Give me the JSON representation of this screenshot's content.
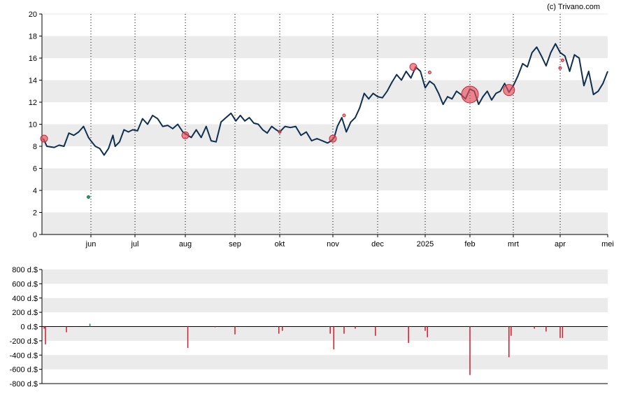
{
  "copyright": "(c) Trivano.com",
  "chart_data": [
    {
      "type": "line",
      "x_tick_labels": [
        "jun",
        "jul",
        "aug",
        "sep",
        "okt",
        "nov",
        "dec",
        "2025",
        "feb",
        "mrt",
        "apr",
        "mei"
      ],
      "x_ticks_month_index": [
        1,
        2,
        3,
        4,
        5,
        6,
        7,
        8,
        9,
        10,
        11,
        12
      ],
      "y_tick_labels": [
        "0",
        "2",
        "4",
        "6",
        "8",
        "10",
        "12",
        "14",
        "16",
        "18",
        "20"
      ],
      "ylim": [
        0,
        20
      ],
      "grid": "horizontal bands, dotted monthly verticals",
      "colors": {
        "price_line": "#0f2f4f",
        "sell_marker": "#e8505b",
        "buy_marker": "#2a9d6a",
        "band": "#ebebeb"
      },
      "series": [
        {
          "values_by_month_index": [
            [
              0.0,
              8.7
            ],
            [
              0.1,
              8.0
            ],
            [
              0.25,
              7.9
            ],
            [
              0.35,
              8.1
            ],
            [
              0.45,
              8.0
            ],
            [
              0.55,
              9.2
            ],
            [
              0.65,
              9.0
            ],
            [
              0.75,
              9.3
            ],
            [
              0.85,
              9.8
            ],
            [
              0.95,
              8.8
            ],
            [
              1.0,
              8.5
            ],
            [
              1.1,
              8.0
            ],
            [
              1.2,
              7.8
            ],
            [
              1.3,
              7.2
            ],
            [
              1.4,
              7.8
            ],
            [
              1.5,
              9.0
            ],
            [
              1.55,
              8.0
            ],
            [
              1.65,
              8.4
            ],
            [
              1.75,
              9.5
            ],
            [
              1.85,
              9.3
            ],
            [
              1.95,
              9.5
            ],
            [
              2.05,
              9.4
            ],
            [
              2.15,
              10.5
            ],
            [
              2.25,
              10.0
            ],
            [
              2.35,
              10.8
            ],
            [
              2.45,
              10.5
            ],
            [
              2.55,
              9.8
            ],
            [
              2.65,
              9.9
            ],
            [
              2.75,
              9.6
            ],
            [
              2.85,
              10.0
            ],
            [
              2.95,
              9.3
            ],
            [
              3.05,
              9.0
            ],
            [
              3.12,
              8.8
            ],
            [
              3.22,
              9.5
            ],
            [
              3.32,
              8.8
            ],
            [
              3.42,
              9.8
            ],
            [
              3.52,
              8.5
            ],
            [
              3.62,
              8.4
            ],
            [
              3.72,
              10.2
            ],
            [
              3.82,
              10.6
            ],
            [
              3.92,
              11.0
            ],
            [
              4.02,
              10.3
            ],
            [
              4.12,
              10.8
            ],
            [
              4.22,
              10.3
            ],
            [
              4.32,
              10.6
            ],
            [
              4.42,
              10.1
            ],
            [
              4.52,
              10.0
            ],
            [
              4.62,
              9.5
            ],
            [
              4.72,
              9.2
            ],
            [
              4.82,
              9.8
            ],
            [
              4.92,
              9.5
            ],
            [
              5.0,
              9.3
            ],
            [
              5.1,
              9.8
            ],
            [
              5.2,
              9.7
            ],
            [
              5.3,
              9.8
            ],
            [
              5.4,
              9.0
            ],
            [
              5.5,
              9.3
            ],
            [
              5.6,
              8.5
            ],
            [
              5.7,
              8.7
            ],
            [
              5.8,
              8.5
            ],
            [
              5.9,
              8.3
            ],
            [
              5.97,
              8.5
            ],
            [
              6.03,
              8.8
            ],
            [
              6.1,
              9.8
            ],
            [
              6.2,
              10.6
            ],
            [
              6.3,
              9.3
            ],
            [
              6.4,
              10.2
            ],
            [
              6.5,
              10.6
            ],
            [
              6.6,
              11.5
            ],
            [
              6.7,
              12.8
            ],
            [
              6.8,
              12.3
            ],
            [
              6.9,
              12.8
            ],
            [
              7.0,
              12.5
            ],
            [
              7.1,
              12.4
            ],
            [
              7.2,
              13.0
            ],
            [
              7.3,
              13.8
            ],
            [
              7.4,
              14.5
            ],
            [
              7.5,
              14.0
            ],
            [
              7.6,
              14.8
            ],
            [
              7.7,
              14.2
            ],
            [
              7.8,
              15.2
            ],
            [
              7.9,
              14.8
            ],
            [
              8.0,
              13.3
            ],
            [
              8.1,
              13.9
            ],
            [
              8.2,
              13.6
            ],
            [
              8.3,
              12.8
            ],
            [
              8.4,
              11.8
            ],
            [
              8.5,
              12.5
            ],
            [
              8.6,
              12.3
            ],
            [
              8.7,
              13.0
            ],
            [
              8.8,
              12.7
            ],
            [
              8.9,
              12.3
            ],
            [
              9.0,
              13.2
            ],
            [
              9.1,
              13.0
            ],
            [
              9.2,
              11.8
            ],
            [
              9.3,
              12.5
            ],
            [
              9.4,
              13.0
            ],
            [
              9.5,
              12.2
            ],
            [
              9.6,
              12.8
            ],
            [
              9.7,
              13.0
            ],
            [
              9.8,
              13.7
            ],
            [
              9.9,
              12.9
            ],
            [
              10.0,
              13.5
            ],
            [
              10.1,
              14.4
            ],
            [
              10.2,
              15.5
            ],
            [
              10.3,
              15.2
            ],
            [
              10.4,
              16.5
            ],
            [
              10.5,
              17.0
            ],
            [
              10.6,
              16.2
            ],
            [
              10.7,
              15.3
            ],
            [
              10.8,
              16.5
            ],
            [
              10.9,
              17.3
            ],
            [
              11.0,
              16.5
            ],
            [
              11.1,
              16.2
            ],
            [
              11.2,
              14.8
            ],
            [
              11.3,
              16.3
            ],
            [
              11.4,
              16.0
            ],
            [
              11.5,
              13.5
            ],
            [
              11.6,
              14.8
            ],
            [
              11.7,
              12.7
            ],
            [
              11.8,
              13.0
            ],
            [
              11.9,
              13.7
            ],
            [
              12.0,
              14.8
            ]
          ]
        }
      ],
      "insider_markers": [
        {
          "type": "sell",
          "month_index": 0.0,
          "price": 8.7,
          "size": "small"
        },
        {
          "type": "buy",
          "month_index": 0.95,
          "price": 3.4,
          "size": "tiny"
        },
        {
          "type": "sell",
          "month_index": 3.0,
          "price": 9.0,
          "size": "small"
        },
        {
          "type": "sell",
          "month_index": 5.0,
          "price": 9.3,
          "size": "tiny"
        },
        {
          "type": "sell",
          "month_index": 6.0,
          "price": 8.7,
          "size": "small"
        },
        {
          "type": "sell",
          "month_index": 6.25,
          "price": 10.8,
          "size": "tiny"
        },
        {
          "type": "sell",
          "month_index": 7.75,
          "price": 15.2,
          "size": "small"
        },
        {
          "type": "sell",
          "month_index": 8.1,
          "price": 14.7,
          "size": "tiny"
        },
        {
          "type": "sell",
          "month_index": 9.0,
          "price": 12.7,
          "size": "large"
        },
        {
          "type": "sell",
          "month_index": 9.9,
          "price": 13.1,
          "size": "medium"
        },
        {
          "type": "sell",
          "month_index": 11.0,
          "price": 15.1,
          "size": "tiny"
        },
        {
          "type": "sell",
          "month_index": 11.05,
          "price": 15.8,
          "size": "tiny"
        }
      ]
    },
    {
      "type": "bar",
      "y_tick_labels": [
        "800 d.$",
        "600 d.$",
        "400 d.$",
        "200 d.$",
        "0 d.$",
        "-200 d.$",
        "-400 d.$",
        "-600 d.$",
        "-800 d.$"
      ],
      "ylim": [
        -800,
        800
      ],
      "values_by_month_index": [
        [
          0.02,
          -30
        ],
        [
          0.05,
          -250
        ],
        [
          0.5,
          -80
        ],
        [
          0.98,
          40
        ],
        [
          3.05,
          -300
        ],
        [
          3.6,
          -10
        ],
        [
          4.0,
          -110
        ],
        [
          4.98,
          -100
        ],
        [
          5.05,
          -60
        ],
        [
          5.95,
          -100
        ],
        [
          6.02,
          -320
        ],
        [
          6.25,
          -100
        ],
        [
          6.5,
          -30
        ],
        [
          6.95,
          -130
        ],
        [
          7.65,
          -230
        ],
        [
          8.0,
          -60
        ],
        [
          8.05,
          -150
        ],
        [
          9.0,
          -680
        ],
        [
          9.9,
          -430
        ],
        [
          9.95,
          -130
        ],
        [
          10.45,
          -30
        ],
        [
          10.7,
          -70
        ],
        [
          11.0,
          -160
        ],
        [
          11.05,
          -160
        ]
      ],
      "colors": {
        "negative": "#d11a2a",
        "positive": "#148f5c"
      }
    }
  ]
}
